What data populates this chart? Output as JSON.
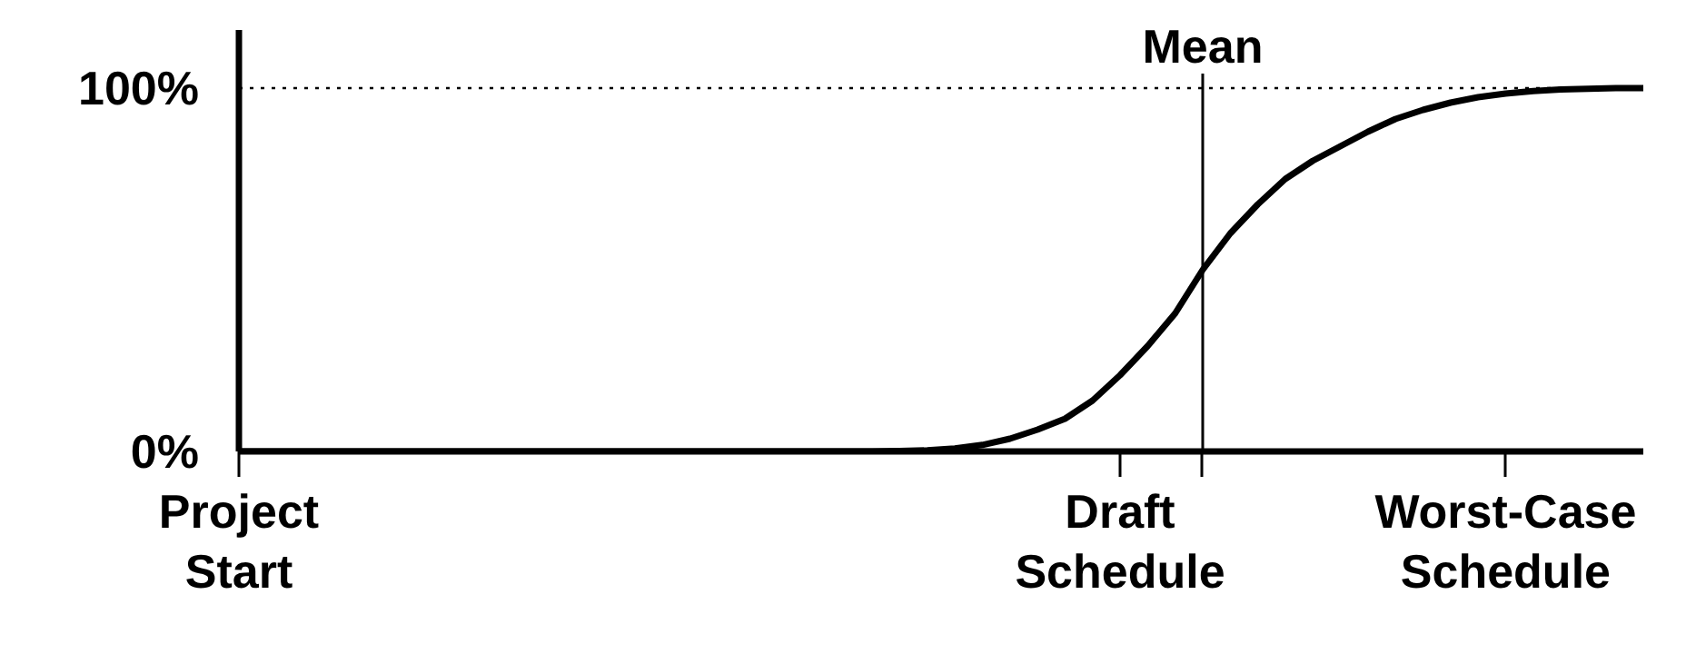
{
  "chart_data": {
    "type": "line",
    "categories": [
      "Project\nStart",
      null,
      null,
      null,
      null,
      null,
      null,
      null,
      null,
      null,
      null,
      null,
      null,
      null,
      null,
      null,
      null,
      null,
      null,
      null,
      null,
      null,
      null,
      null,
      null,
      null,
      null,
      null,
      null,
      null,
      null,
      null,
      "Draft\nSchedule",
      null,
      null,
      "Mean",
      null,
      null,
      null,
      null,
      null,
      null,
      null,
      null,
      null,
      null,
      "Worst-Case\nSchedule",
      null,
      null,
      null,
      null,
      null
    ],
    "series": [
      {
        "color": "#000000",
        "values": [
          0,
          0,
          0,
          0,
          0,
          0,
          0,
          0,
          0,
          0,
          0,
          0,
          0,
          0,
          0,
          0,
          0,
          0,
          0,
          0,
          0,
          0,
          0,
          0,
          0.1,
          0.3,
          0.8,
          1.8,
          3.5,
          6,
          9,
          14,
          21,
          29,
          38,
          50,
          60,
          68,
          75,
          80,
          84,
          88,
          91.5,
          94,
          96,
          97.5,
          98.5,
          99.2,
          99.6,
          99.8,
          100,
          100
        ]
      }
    ],
    "ylim": [
      0,
      116
    ],
    "yticks": [
      {
        "value": 0,
        "label": "0%"
      },
      {
        "value": 100,
        "label": "100%"
      }
    ],
    "ref_lines": [
      {
        "axis": "y",
        "value": 100,
        "label": null,
        "line_style": "dotted"
      },
      {
        "axis": "x",
        "value": "Mean",
        "label": null,
        "line_style": "solid"
      }
    ],
    "grid": false,
    "marker": "none",
    "line_style": "solid"
  }
}
